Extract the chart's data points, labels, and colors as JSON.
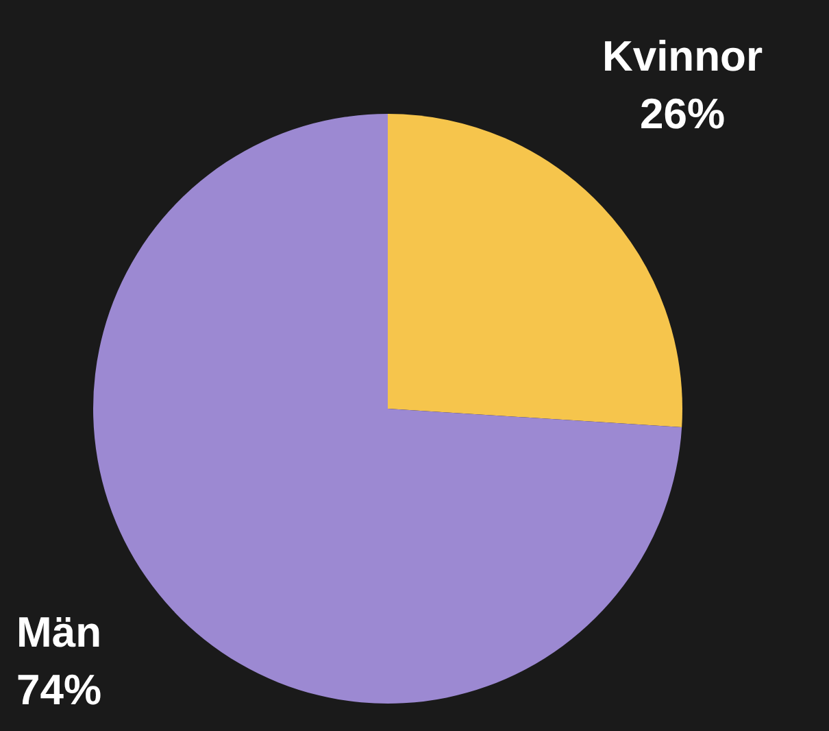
{
  "chart_data": {
    "type": "pie",
    "categories": [
      "Kvinnor",
      "Män"
    ],
    "values": [
      26,
      74
    ],
    "colors": [
      "#f6c54c",
      "#9c89d2"
    ],
    "value_labels": [
      "26%",
      "74%"
    ],
    "legend": false
  }
}
